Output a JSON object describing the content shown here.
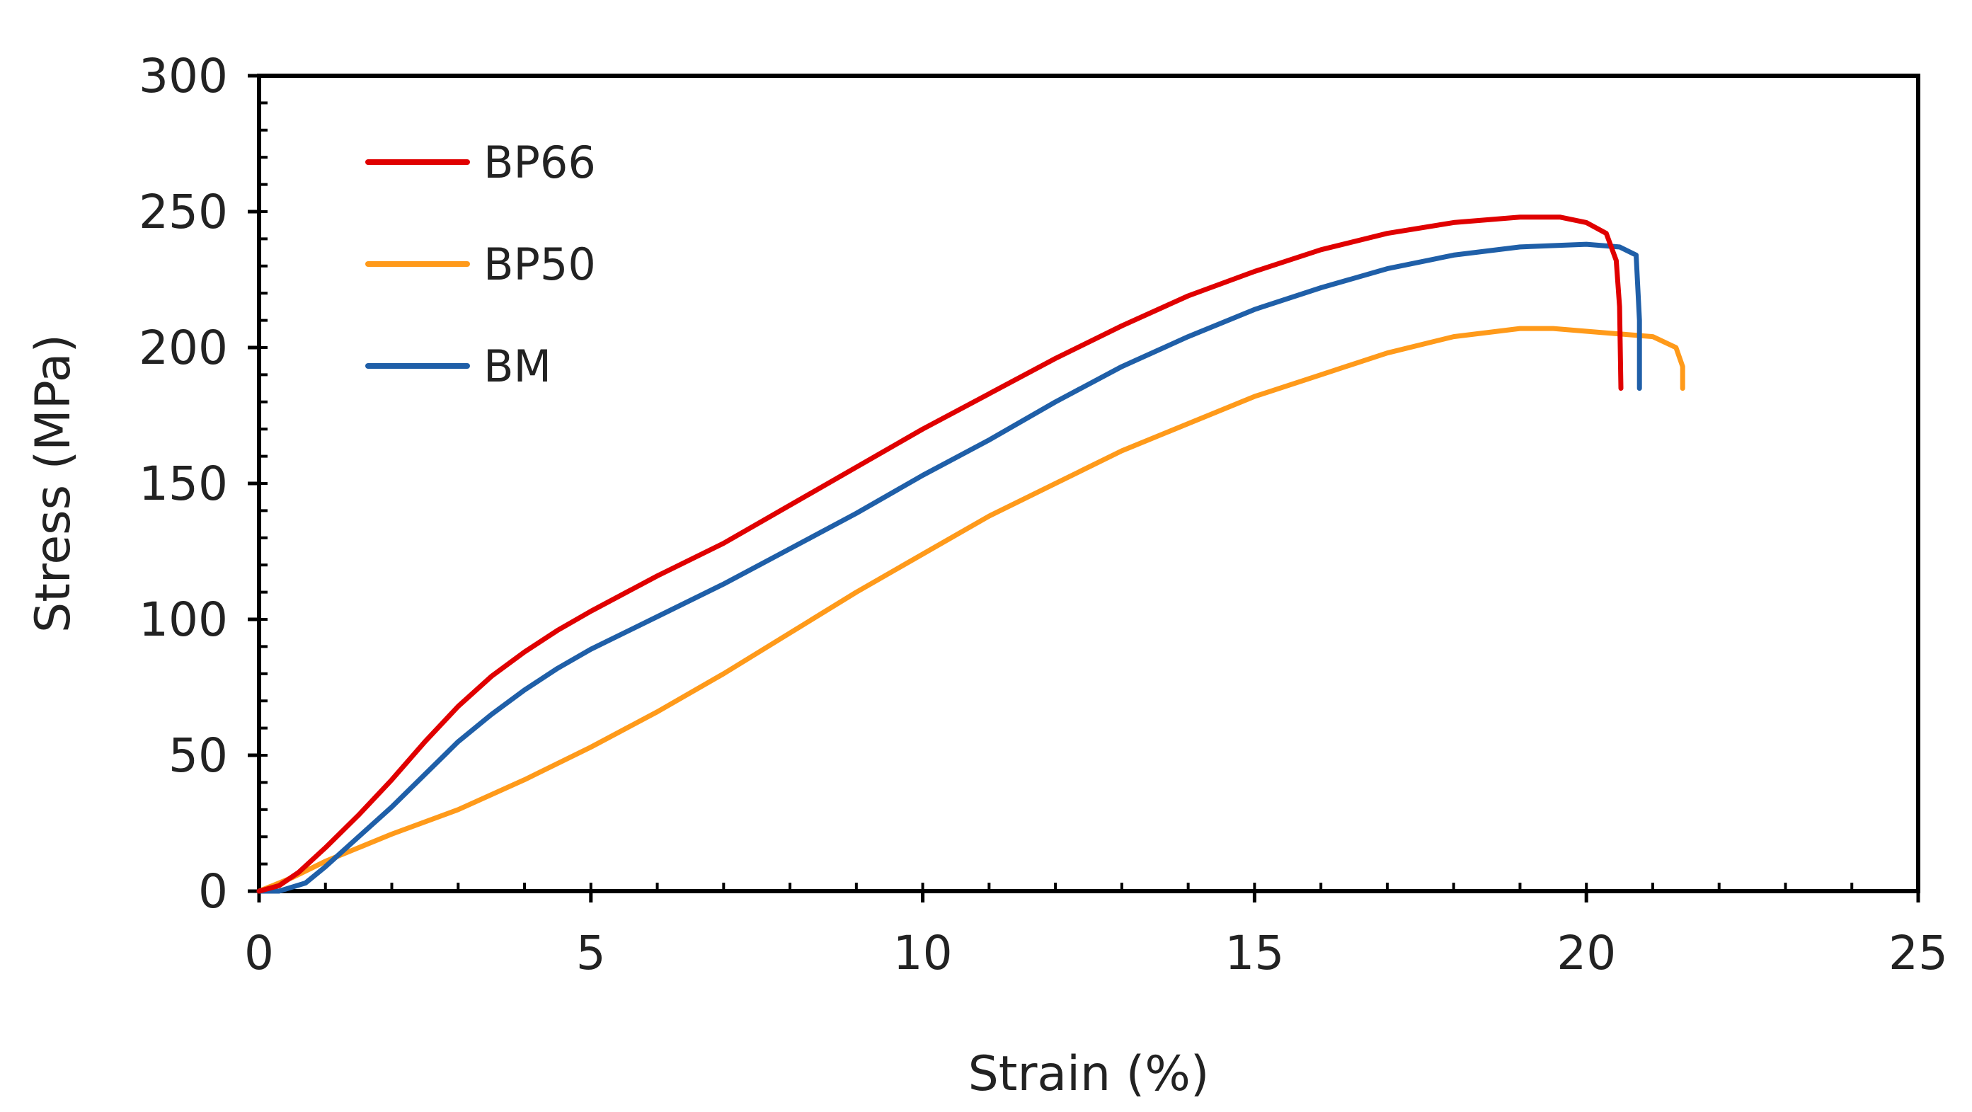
{
  "chart_data": {
    "type": "line",
    "title": "",
    "xlabel": "Strain (%)",
    "ylabel": "Stress (MPa)",
    "xlim": [
      0,
      25
    ],
    "ylim": [
      0,
      300
    ],
    "xticks": [
      0,
      5,
      10,
      15,
      20,
      25
    ],
    "yticks": [
      0,
      50,
      100,
      150,
      200,
      250,
      300
    ],
    "xtick_labels": [
      "0",
      "5",
      "10",
      "15",
      "20",
      "25"
    ],
    "ytick_labels": [
      "0",
      "50",
      "100",
      "150",
      "200",
      "250",
      "300"
    ],
    "grid": false,
    "legend_position": "top-left",
    "series": [
      {
        "name": "BP66",
        "color": "#e00000",
        "points": [
          [
            0,
            0
          ],
          [
            0.3,
            2
          ],
          [
            0.6,
            7
          ],
          [
            1.0,
            16
          ],
          [
            1.5,
            28
          ],
          [
            2.0,
            41
          ],
          [
            2.5,
            55
          ],
          [
            3.0,
            68
          ],
          [
            3.5,
            79
          ],
          [
            4.0,
            88
          ],
          [
            4.5,
            96
          ],
          [
            5.0,
            103
          ],
          [
            6.0,
            116
          ],
          [
            7.0,
            128
          ],
          [
            8.0,
            142
          ],
          [
            9.0,
            156
          ],
          [
            10.0,
            170
          ],
          [
            11.0,
            183
          ],
          [
            12.0,
            196
          ],
          [
            13.0,
            208
          ],
          [
            14.0,
            219
          ],
          [
            15.0,
            228
          ],
          [
            16.0,
            236
          ],
          [
            17.0,
            242
          ],
          [
            18.0,
            246
          ],
          [
            19.0,
            248
          ],
          [
            19.6,
            248
          ],
          [
            20.0,
            246
          ],
          [
            20.3,
            242
          ],
          [
            20.45,
            232
          ],
          [
            20.5,
            215
          ],
          [
            20.52,
            185
          ]
        ]
      },
      {
        "name": "BP50",
        "color": "#ff9a1a",
        "points": [
          [
            0,
            0
          ],
          [
            0.5,
            5
          ],
          [
            1.0,
            11
          ],
          [
            2.0,
            21
          ],
          [
            3.0,
            30
          ],
          [
            4.0,
            41
          ],
          [
            5.0,
            53
          ],
          [
            6.0,
            66
          ],
          [
            7.0,
            80
          ],
          [
            8.0,
            95
          ],
          [
            9.0,
            110
          ],
          [
            10.0,
            124
          ],
          [
            11.0,
            138
          ],
          [
            12.0,
            150
          ],
          [
            13.0,
            162
          ],
          [
            14.0,
            172
          ],
          [
            15.0,
            182
          ],
          [
            16.0,
            190
          ],
          [
            17.0,
            198
          ],
          [
            18.0,
            204
          ],
          [
            19.0,
            207
          ],
          [
            19.5,
            207
          ],
          [
            20.0,
            206
          ],
          [
            20.5,
            205
          ],
          [
            21.0,
            204
          ],
          [
            21.35,
            200
          ],
          [
            21.45,
            193
          ],
          [
            21.45,
            185
          ]
        ]
      },
      {
        "name": "BM",
        "color": "#1f5fa8",
        "points": [
          [
            0,
            0
          ],
          [
            0.3,
            0
          ],
          [
            0.7,
            3
          ],
          [
            1.0,
            9
          ],
          [
            1.5,
            20
          ],
          [
            2.0,
            31
          ],
          [
            2.5,
            43
          ],
          [
            3.0,
            55
          ],
          [
            3.5,
            65
          ],
          [
            4.0,
            74
          ],
          [
            4.5,
            82
          ],
          [
            5.0,
            89
          ],
          [
            6.0,
            101
          ],
          [
            7.0,
            113
          ],
          [
            8.0,
            126
          ],
          [
            9.0,
            139
          ],
          [
            10.0,
            153
          ],
          [
            11.0,
            166
          ],
          [
            12.0,
            180
          ],
          [
            13.0,
            193
          ],
          [
            14.0,
            204
          ],
          [
            15.0,
            214
          ],
          [
            16.0,
            222
          ],
          [
            17.0,
            229
          ],
          [
            18.0,
            234
          ],
          [
            19.0,
            237
          ],
          [
            20.0,
            238
          ],
          [
            20.5,
            237
          ],
          [
            20.75,
            234
          ],
          [
            20.8,
            210
          ],
          [
            20.8,
            185
          ]
        ]
      }
    ]
  }
}
